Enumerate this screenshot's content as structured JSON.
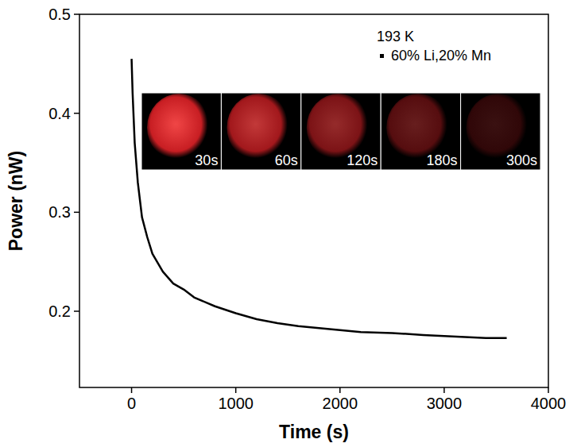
{
  "chart_data": {
    "type": "line",
    "x_label": "Time (s)",
    "y_label": "Power (nW)",
    "annotations": [
      "193 K"
    ],
    "inset_labels": [
      "30s",
      "60s",
      "120s",
      "180s",
      "300s"
    ],
    "x": [
      0,
      10,
      30,
      60,
      100,
      150,
      200,
      300,
      400,
      500,
      600,
      800,
      1000,
      1200,
      1400,
      1600,
      1800,
      2000,
      2200,
      2500,
      2800,
      3000,
      3200,
      3400,
      3600
    ],
    "series": [
      {
        "name": "60% Li,20% Mn",
        "color": "#000000",
        "marker": "square",
        "line_style": "solid",
        "values": [
          0.455,
          0.42,
          0.37,
          0.33,
          0.295,
          0.275,
          0.258,
          0.24,
          0.228,
          0.222,
          0.214,
          0.205,
          0.198,
          0.192,
          0.188,
          0.185,
          0.183,
          0.181,
          0.179,
          0.178,
          0.176,
          0.175,
          0.174,
          0.173,
          0.173
        ]
      }
    ],
    "xlim": [
      -500,
      4000
    ],
    "xticks": [
      0,
      1000,
      2000,
      3000,
      4000
    ],
    "ylim": [
      0.123,
      0.5
    ],
    "yticks": [
      0.2,
      0.3,
      0.4,
      0.5
    ],
    "legend": "top right",
    "grid": false
  }
}
